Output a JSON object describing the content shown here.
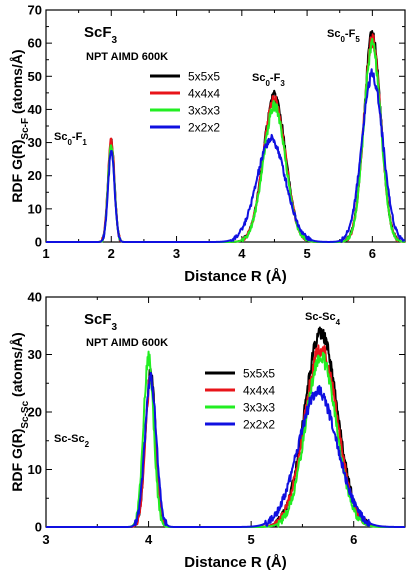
{
  "colors": {
    "5x5x5": "#000000",
    "4x4x4": "#e8141a",
    "3x3x3": "#22ee22",
    "2x2x2": "#1010e0"
  },
  "chart_data": [
    {
      "type": "line",
      "ylabel_main": "RDF G(R)",
      "ylabel_sub": "Sc-F",
      "ylabel_tail": " (atoms/Å)",
      "xlabel": "Distance R (Å)",
      "xlim": [
        1,
        6.5
      ],
      "ylim": [
        0,
        70
      ],
      "xticks": [
        "1",
        "2",
        "3",
        "4",
        "5",
        "6"
      ],
      "yticks": [
        "0",
        "10",
        "20",
        "30",
        "40",
        "50",
        "60",
        "70"
      ],
      "compound": {
        "base": "ScF",
        "sub": "3"
      },
      "sim_label": "NPT AIMD 600K",
      "legend": [
        "5x5x5",
        "4x4x4",
        "3x3x3",
        "2x2x2"
      ],
      "annotations": [
        {
          "base": "Sc",
          "sub1": "0",
          "mid": "-F",
          "sub2": "1"
        },
        {
          "base": "Sc",
          "sub1": "0",
          "mid": "-F",
          "sub2": "3"
        },
        {
          "base": "Sc",
          "sub1": "0",
          "mid": "-F",
          "sub2": "5"
        }
      ],
      "series": [
        {
          "name": "5x5x5",
          "peaks": [
            [
              2.0,
              30.0,
              0.05
            ],
            [
              4.5,
              44.0,
              0.17
            ],
            [
              6.0,
              62.5,
              0.13
            ]
          ]
        },
        {
          "name": "4x4x4",
          "peaks": [
            [
              2.0,
              31.0,
              0.05
            ],
            [
              4.5,
              43.0,
              0.17
            ],
            [
              6.0,
              61.0,
              0.13
            ]
          ]
        },
        {
          "name": "3x3x3",
          "peaks": [
            [
              2.0,
              29.5,
              0.05
            ],
            [
              4.5,
              41.0,
              0.17
            ],
            [
              6.0,
              59.5,
              0.13
            ]
          ]
        },
        {
          "name": "2x2x2",
          "peaks": [
            [
              2.0,
              27.0,
              0.05
            ],
            [
              4.45,
              31.0,
              0.22
            ],
            [
              6.0,
              50.5,
              0.16
            ]
          ]
        }
      ]
    },
    {
      "type": "line",
      "ylabel_main": "RDF G(R)",
      "ylabel_sub": "Sc-Sc",
      "ylabel_tail": " (atoms/Å)",
      "xlabel": "Distance R (Å)",
      "xlim": [
        3,
        6.5
      ],
      "ylim": [
        0,
        40
      ],
      "xticks": [
        "3",
        "4",
        "5",
        "6"
      ],
      "yticks": [
        "0",
        "10",
        "20",
        "30",
        "40"
      ],
      "compound": {
        "base": "ScF",
        "sub": "3"
      },
      "sim_label": "NPT AIMD 600K",
      "legend": [
        "5x5x5",
        "4x4x4",
        "3x3x3",
        "2x2x2"
      ],
      "annotations": [
        {
          "base": "Sc-Sc",
          "sub1": "2",
          "mid": "",
          "sub2": ""
        },
        {
          "base": "Sc-Sc",
          "sub1": "4",
          "mid": "",
          "sub2": ""
        }
      ],
      "series": [
        {
          "name": "5x5x5",
          "peaks": [
            [
              4.02,
              27.0,
              0.05
            ],
            [
              5.68,
              33.5,
              0.16
            ]
          ]
        },
        {
          "name": "4x4x4",
          "peaks": [
            [
              4.02,
              26.0,
              0.05
            ],
            [
              5.68,
              31.0,
              0.16
            ]
          ]
        },
        {
          "name": "3x3x3",
          "peaks": [
            [
              4.0,
              29.5,
              0.05
            ],
            [
              5.68,
              29.5,
              0.15
            ]
          ]
        },
        {
          "name": "2x2x2",
          "peaks": [
            [
              4.02,
              26.0,
              0.055
            ],
            [
              5.65,
              23.5,
              0.19
            ]
          ]
        }
      ]
    }
  ]
}
